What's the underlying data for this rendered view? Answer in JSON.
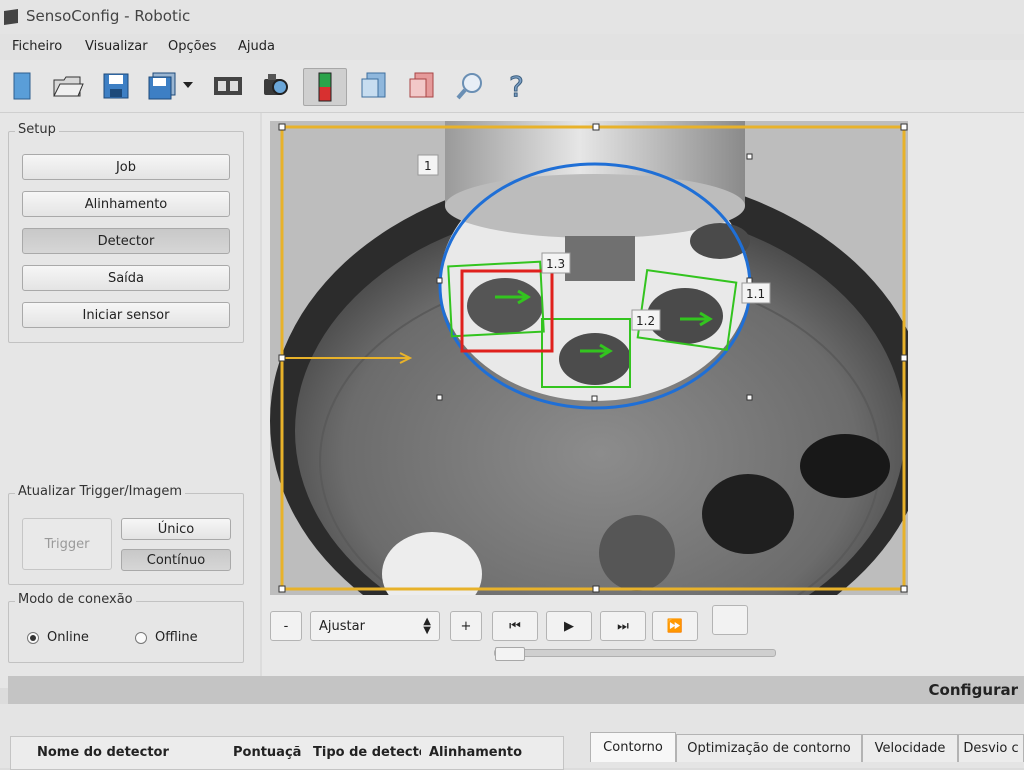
{
  "window": {
    "title": "SensoConfig - Robotic"
  },
  "menu": [
    "Ficheiro",
    "Visualizar",
    "Opções",
    "Ajuda"
  ],
  "toolbar": {
    "icons": [
      "new-document-icon",
      "open-folder-icon",
      "save-icon",
      "save-as-icon",
      "dropdown-arrow-icon",
      "film-strip-icon",
      "camera-icon",
      "detector-icon",
      "alignment-icon",
      "output-icon",
      "search-icon",
      "help-icon"
    ]
  },
  "setup": {
    "title": "Setup",
    "buttons": [
      "Job",
      "Alinhamento",
      "Detector",
      "Saída",
      "Iniciar sensor"
    ],
    "active": "Detector"
  },
  "trigger": {
    "title": "Atualizar Trigger/Imagem",
    "trigger_label": "Trigger",
    "single_label": "Único",
    "continuous_label": "Contínuo"
  },
  "connection": {
    "title": "Modo de conexão",
    "online_label": "Online",
    "offline_label": "Offline",
    "selected": "Online"
  },
  "viewer": {
    "labels": {
      "roi_main": "1",
      "roi_1_1": "1.1",
      "roi_1_2": "1.2",
      "roi_1_3": "1.3"
    },
    "zoom_out_label": "-",
    "zoom_value": "Ajustar",
    "zoom_in_label": "+",
    "colors": {
      "roi": "#e8b22a",
      "circle": "#1f6fd6",
      "contour": "#33c41f",
      "selected": "#e0201c"
    }
  },
  "config": {
    "title": "Configurar"
  },
  "table": {
    "headers": [
      "Nome do detector",
      "Pontuaçã",
      "Tipo de detectc",
      "Alinhamento"
    ]
  },
  "tabs": [
    "Contorno",
    "Optimização de contorno",
    "Velocidade",
    "Desvio c"
  ]
}
